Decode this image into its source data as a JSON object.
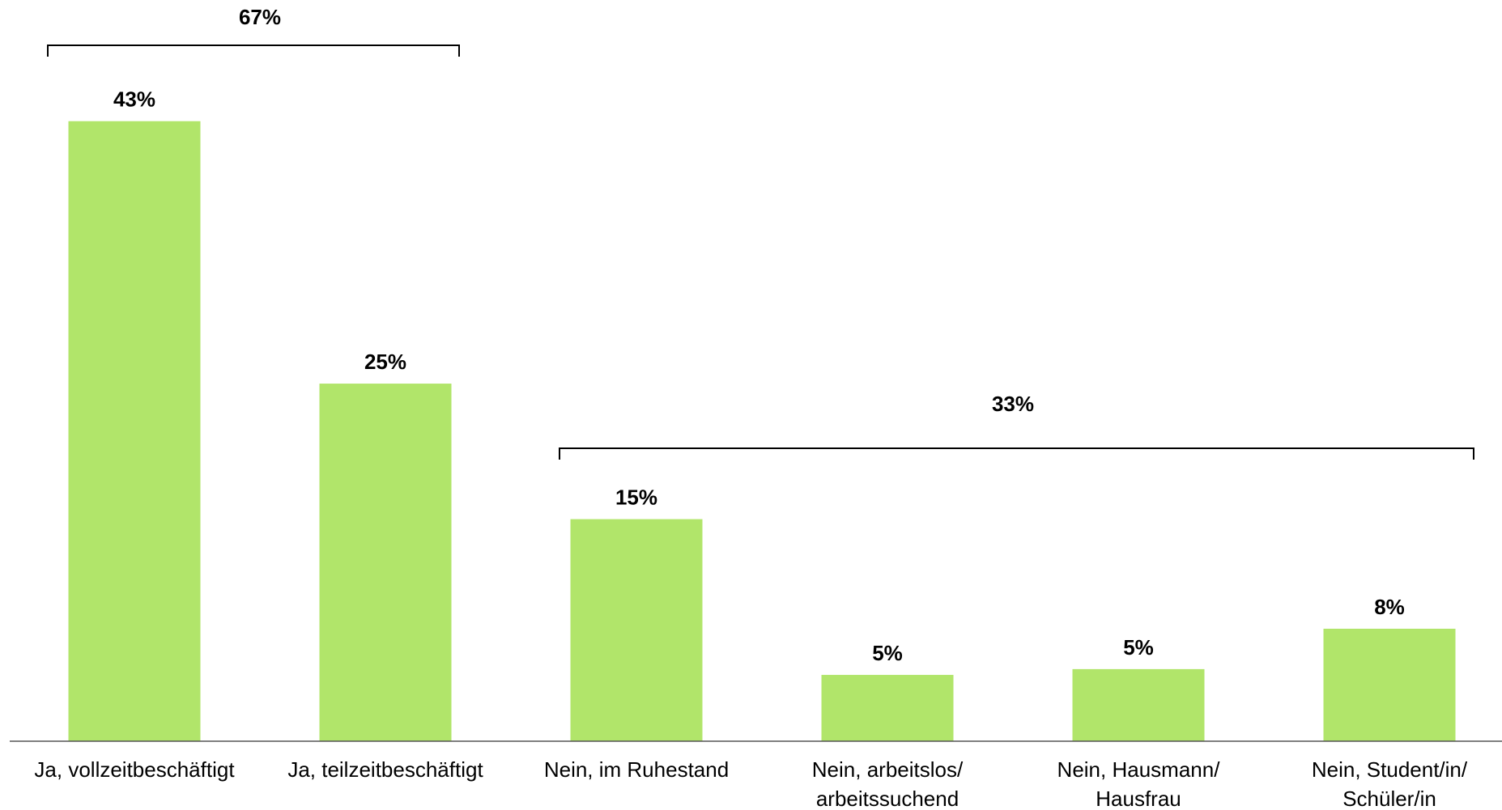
{
  "chart_data": {
    "type": "bar",
    "categories": [
      [
        "Ja, vollzeitbeschäftigt"
      ],
      [
        "Ja, teilzeitbeschäftigt"
      ],
      [
        "Nein, im Ruhestand"
      ],
      [
        "Nein, arbeitslos/",
        "arbeitssuchend"
      ],
      [
        "Nein, Hausmann/",
        "Hausfrau"
      ],
      [
        "Nein, Student/in/",
        "Schüler/in"
      ]
    ],
    "values": [
      43,
      24.8,
      15.4,
      4.6,
      5.0,
      7.8
    ],
    "value_labels": [
      "43%",
      "25%",
      "15%",
      "5%",
      "5%",
      "8%"
    ],
    "color": "#b1e56a",
    "ylim": [
      0,
      50
    ],
    "brackets": [
      {
        "value": 67,
        "label": "67%",
        "start": 0,
        "end": 1
      },
      {
        "value": 33,
        "label": "33%",
        "start": 2,
        "end": 5
      }
    ]
  }
}
